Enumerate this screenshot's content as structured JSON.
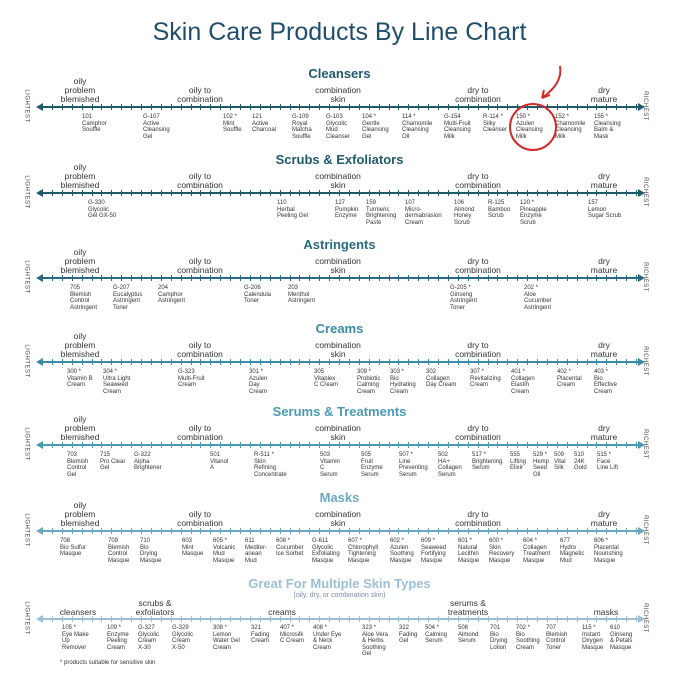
{
  "title": "Skin Care Products By Line Chart",
  "edge_left": "LIGHTEST",
  "edge_right": "RICHEST",
  "footnote": "* products suitable for sensitive skin",
  "multi_subtitle": "(oily, dry, or combination skin)",
  "colors": {
    "title": "#1f4e6b",
    "cleansers": "#1f5a6b",
    "scrubs": "#1f5a6b",
    "astringents": "#2a6a80",
    "creams": "#3a8aa6",
    "serums": "#4b9ab3",
    "masks": "#6aa8c2",
    "multi": "#9cbfd3",
    "highlight": "#d42a2a"
  },
  "sections": [
    {
      "id": "cleansers",
      "title": "Cleansers",
      "skin_types": [
        "oily\nproblem\nblemished",
        "oily to\ncombination",
        "combination\nskin",
        "dry to\ncombination",
        "dry\nmature"
      ],
      "products": [
        "101\nCamphor\nSouffle",
        "G-107\nActive\nCleansing\nGel",
        "102 *\nMint\nSouffle",
        "121\nActive\nCharcoal",
        "G-109\nRoyal\nMatcha\nSouffle",
        "G-103\nGlycolic\nMud\nCleanser",
        "104 *\nGentle\nCleansing\nGel",
        "114 *\nChamomile\nCleansing\nOil",
        "G-154\nMulti-Fruit\nCleansing\nMilk",
        "R-114 *\nSilky\nCleanser",
        "150 *\nAzulen\nCleansing\nMilk",
        "152 *\nChamomile\nCleansing\nMilk",
        "155 *\nCleansing\nBalm &\nMask"
      ]
    },
    {
      "id": "scrubs",
      "title": "Scrubs & Exfoliators",
      "skin_types": [
        "oily\nproblem\nblemished",
        "oily to\ncombination",
        "combination\nskin",
        "dry to\ncombination",
        "dry\nmature"
      ],
      "products": [
        "G-330\nGlycolic\nGel GX-50",
        "110\nHerbal\nPeeling Gel",
        "127\nPumpkin\nEnzyme",
        "159\nTurmeric\nBrightening\nPaste",
        "107\nMicro-\ndermabrasion\nCream",
        "106\nAlmond\nHoney\nScrub",
        "R-125\nBamboo\nScrub",
        "120 *\nPineapple\nEnzyme\nScrub",
        "157\nLemon\nSugar Scrub"
      ]
    },
    {
      "id": "astringents",
      "title": "Astringents",
      "skin_types": [
        "oily\nproblem\nblemished",
        "oily to\ncombination",
        "combination\nskin",
        "dry to\ncombination",
        "dry\nmature"
      ],
      "products": [
        "705\nBlemish\nControl\nAstringent",
        "G-207\nEucalyptus\nAstringent\nToner",
        "204\nCamphor\nAstringent",
        "G-206\nCalendula\nToner",
        "203\nMenthol\nAstringent",
        "G-205 *\nGinseng\nAstringent\nToner",
        "202 *\nAloe\nCucumber\nAstringent"
      ]
    },
    {
      "id": "creams",
      "title": "Creams",
      "skin_types": [
        "oily\nproblem\nblemished",
        "oily to\ncombination",
        "combination\nskin",
        "dry to\ncombination",
        "dry\nmature"
      ],
      "products": [
        "300 *\nVitamin B\nCream",
        "304 *\nUltra Light\nSeaweed\nCream",
        "G-323\nMulti-Fruit\nCream",
        "301 *\nAzulen\nDay\nCream",
        "305\nVitaplex\nC Cream",
        "309 *\nProbiotic\nCalming\nCream",
        "303 *\nBio\nHydrating\nCream",
        "302\nCollagen\nDay Cream",
        "307 *\nRevitalizing\nCream",
        "401 *\nCollagen\nElastin\nCream",
        "402 *\nPlacental\nCream",
        "403 *\nBio\nEffective\nCream"
      ]
    },
    {
      "id": "serums",
      "title": "Serums & Treatments",
      "skin_types": [
        "oily\nproblem\nblemished",
        "oily to\ncombination",
        "combination\nskin",
        "dry to\ncombination",
        "dry\nmature"
      ],
      "products": [
        "703\nBlemish\nControl\nGel",
        "715\nPro Clear\nGel",
        "G-322\nAlpha\nBrightener",
        "501\nVitanol\nA",
        "R-511 *\nSkin\nRefining\nConcentrate",
        "503\nVitamin\nC\nSerum",
        "505\nFruit\nEnzyme\nSerum",
        "507 *\nLine\nPreventing\nSerum",
        "502\nHA+\nCollagen\nSerum",
        "517 *\nBrightening\nSerum",
        "555\nLifting\nElixir",
        "529 *\nHemp\nSeed\nOil",
        "509\nVital\nSilk",
        "510\n24K\nGold",
        "515 *\nFace\nLine Lift"
      ]
    },
    {
      "id": "masks",
      "title": "Masks",
      "skin_types": [
        "oily\nproblem\nblemished",
        "oily to\ncombination",
        "combination\nskin",
        "dry to\ncombination",
        "dry\nmature"
      ],
      "products": [
        "708\nBio Sulfur\nMasque",
        "709\nBlemish\nControl\nMasque",
        "710\nBio\nDrying\nMasque",
        "603\nMint\nMasque",
        "605 *\nVolcanic\nMud\nMasque",
        "611\nMediter-\nanean\nMud",
        "608 *\nCucumber\nIce Sorbet",
        "G-611\nGlycolic\nExfoliating\nMasque",
        "607 *\nChlorophyll\nTightening\nMasque",
        "602 *\nAzulen\nSoothing\nMasque",
        "609 *\nSeaweed\nFortifying\nMasque",
        "601 *\nNatural\nLecithin\nMasque",
        "600 *\nSkin\nRecovery\nMasque",
        "604 *\nCollagen\nTreatment\nMasque",
        "677\nHydro\nMagnetic\nMud",
        "606 *\nPlacental\nNourishing\nMasque"
      ]
    }
  ],
  "multi": {
    "title": "Great For Multiple Skin Types",
    "categories": [
      "cleansers",
      "scrubs &\nexfoliators",
      "creams",
      "serums &\ntreatments",
      "masks"
    ],
    "products": [
      "105 *\nEye Make\nUp\nRemover",
      "109 *\nEnzyme\nPeeling\nCream",
      "G-327\nGlycolic\nCream\nX-30",
      "G-329\nGlycolic\nCream\nX-50",
      "308 *\nLemon\nWater Gel\nCream",
      "321\nFading\nCream",
      "407 *\nMicrosilk\nC Cream",
      "408 *\nUnder Eye\n& Neck\nCream",
      "323 *\nAloe Vera\n& Herbs\nSoothing\nGel",
      "322\nFading\nGel",
      "504 *\nCalming\nSerum",
      "508\nAlmond\nSerum",
      "701\nBio\nDrying\nLotion",
      "702 *\nBio\nSoothing\nCream",
      "707\nBlemish\nControl\nToner",
      "115 *\nInstant\nOxygen\nMasque",
      "610\nGinseng\n& Petals\nMasque"
    ]
  }
}
